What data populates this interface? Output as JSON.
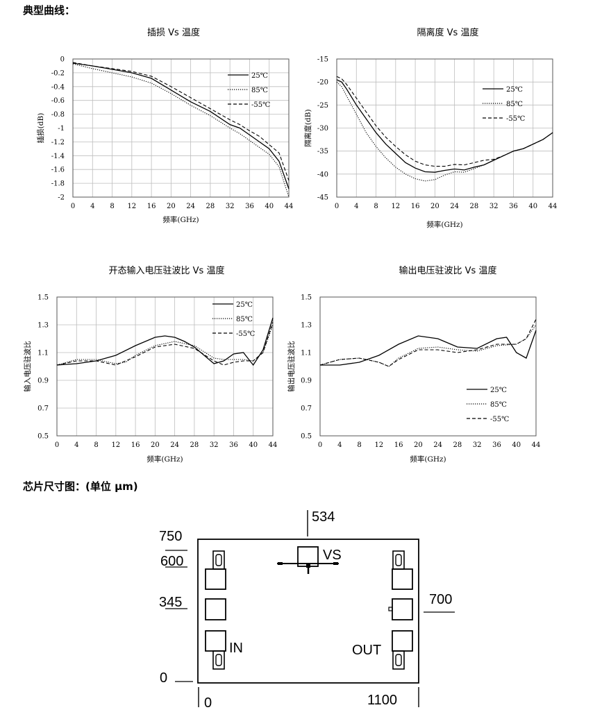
{
  "section1_title": "典型曲线：",
  "section2_title": "芯片尺寸图：(单位 μm)",
  "chart_data": [
    {
      "type": "line",
      "title": "插损 Vs 温度",
      "xlabel": "频率(GHz)",
      "ylabel": "插损(dB)",
      "xlim": [
        0,
        44
      ],
      "ylim": [
        -2,
        0
      ],
      "xticks": [
        "0",
        "4",
        "8",
        "12",
        "16",
        "20",
        "24",
        "28",
        "32",
        "36",
        "40",
        "44"
      ],
      "yticks": [
        "0",
        "-0.2",
        "-0.4",
        "-0.6",
        "-0.8",
        "-1",
        "-1.2",
        "-1.4",
        "-1.6",
        "-1.8",
        "-2"
      ],
      "grid": true,
      "legend_position": "top-right",
      "series": [
        {
          "name": "25℃",
          "style": "solid",
          "x": [
            0,
            4,
            8,
            12,
            16,
            20,
            24,
            28,
            32,
            34,
            36,
            38,
            40,
            42,
            44
          ],
          "y": [
            -0.06,
            -0.1,
            -0.15,
            -0.2,
            -0.28,
            -0.45,
            -0.62,
            -0.76,
            -0.95,
            -1.0,
            -1.1,
            -1.2,
            -1.3,
            -1.48,
            -1.88
          ]
        },
        {
          "name": "85℃",
          "style": "dotted",
          "x": [
            0,
            4,
            8,
            12,
            16,
            20,
            24,
            28,
            32,
            34,
            36,
            38,
            40,
            42,
            44
          ],
          "y": [
            -0.07,
            -0.14,
            -0.2,
            -0.26,
            -0.35,
            -0.5,
            -0.67,
            -0.82,
            -1.0,
            -1.08,
            -1.18,
            -1.28,
            -1.38,
            -1.56,
            -2.0
          ]
        },
        {
          "name": "-55℃",
          "style": "dashed",
          "x": [
            0,
            4,
            8,
            12,
            16,
            20,
            24,
            28,
            32,
            34,
            36,
            38,
            40,
            42,
            44
          ],
          "y": [
            -0.05,
            -0.1,
            -0.14,
            -0.18,
            -0.25,
            -0.4,
            -0.56,
            -0.72,
            -0.88,
            -0.95,
            -1.04,
            -1.12,
            -1.24,
            -1.36,
            -1.76
          ]
        }
      ]
    },
    {
      "type": "line",
      "title": "隔离度 Vs 温度",
      "xlabel": "频率(GHz)",
      "ylabel": "隔离度(dB)",
      "xlim": [
        0,
        44
      ],
      "ylim": [
        -45,
        -15
      ],
      "xticks": [
        "0",
        "4",
        "8",
        "12",
        "16",
        "20",
        "24",
        "28",
        "32",
        "36",
        "40",
        "44"
      ],
      "yticks": [
        "-15",
        "-20",
        "-25",
        "-30",
        "-35",
        "-40",
        "-45"
      ],
      "grid": true,
      "legend_position": "top-right",
      "series": [
        {
          "name": "25℃",
          "style": "solid",
          "x": [
            0,
            1,
            2,
            4,
            6,
            8,
            10,
            12,
            14,
            16,
            18,
            20,
            22,
            24,
            26,
            28,
            30,
            32,
            34,
            36,
            38,
            40,
            42,
            44
          ],
          "y": [
            -19.5,
            -20,
            -21.5,
            -25,
            -28,
            -31,
            -33.5,
            -35.5,
            -37.5,
            -38.7,
            -39.5,
            -39.6,
            -39.2,
            -38.9,
            -39.1,
            -38.5,
            -38,
            -37,
            -36,
            -35,
            -34.5,
            -33.5,
            -32.5,
            -31
          ]
        },
        {
          "name": "85℃",
          "style": "dotted",
          "x": [
            0,
            1,
            2,
            4,
            6,
            8,
            10,
            12,
            14,
            16,
            18,
            20,
            22,
            24,
            26,
            28,
            30,
            32,
            34,
            36,
            38,
            40,
            42,
            44
          ],
          "y": [
            -20,
            -21,
            -23,
            -27,
            -31,
            -34,
            -36.5,
            -38.5,
            -40,
            -41,
            -41.5,
            -41.2,
            -40.2,
            -39.5,
            -39.6,
            -38.8,
            -38,
            -37,
            -36,
            -35,
            -34.5,
            -33.5,
            -32.5,
            -31
          ]
        },
        {
          "name": "-55℃",
          "style": "dashed",
          "x": [
            0,
            1,
            2,
            4,
            6,
            8,
            10,
            12,
            14,
            16,
            18,
            20,
            22,
            24,
            26,
            28,
            30,
            32,
            34,
            36,
            38,
            40,
            42,
            44
          ],
          "y": [
            -18.8,
            -19.3,
            -20.5,
            -23.5,
            -26.5,
            -29.5,
            -32,
            -34,
            -35.8,
            -37.2,
            -38,
            -38.3,
            -38.3,
            -37.9,
            -38,
            -37.5,
            -37,
            -36.8,
            -36,
            -35,
            -34.5,
            -33.5,
            -32.5,
            -31
          ]
        }
      ]
    },
    {
      "type": "line",
      "title": "开态输入电压驻波比 Vs 温度",
      "xlabel": "频率(GHz)",
      "ylabel": "输入电压驻波比",
      "xlim": [
        0,
        44
      ],
      "ylim": [
        0.5,
        1.5
      ],
      "xticks": [
        "0",
        "4",
        "8",
        "12",
        "16",
        "20",
        "24",
        "28",
        "32",
        "36",
        "40",
        "44"
      ],
      "yticks": [
        "1.5",
        "1.3",
        "1.1",
        "0.9",
        "0.7",
        "0.5"
      ],
      "grid": true,
      "legend_position": "top-right",
      "series": [
        {
          "name": "25℃",
          "style": "solid",
          "x": [
            0,
            4,
            8,
            12,
            16,
            20,
            22,
            24,
            26,
            28,
            30,
            32,
            34,
            36,
            38,
            40,
            42,
            44
          ],
          "y": [
            1.01,
            1.02,
            1.04,
            1.08,
            1.15,
            1.21,
            1.22,
            1.21,
            1.18,
            1.14,
            1.08,
            1.02,
            1.04,
            1.09,
            1.1,
            1.01,
            1.12,
            1.35
          ]
        },
        {
          "name": "85℃",
          "style": "dotted",
          "x": [
            0,
            4,
            8,
            12,
            14,
            16,
            20,
            24,
            28,
            32,
            34,
            36,
            38,
            40,
            42,
            44
          ],
          "y": [
            1.01,
            1.05,
            1.05,
            1.02,
            1.03,
            1.08,
            1.15,
            1.18,
            1.15,
            1.06,
            1.05,
            1.05,
            1.05,
            1.04,
            1.1,
            1.3
          ]
        },
        {
          "name": "-55℃",
          "style": "dashed",
          "x": [
            0,
            4,
            8,
            12,
            16,
            20,
            24,
            28,
            32,
            34,
            36,
            38,
            40,
            42,
            44
          ],
          "y": [
            1.01,
            1.04,
            1.04,
            1.01,
            1.07,
            1.14,
            1.16,
            1.13,
            1.04,
            1.01,
            1.03,
            1.04,
            1.04,
            1.1,
            1.32
          ]
        }
      ]
    },
    {
      "type": "line",
      "title": "输出电压驻波比 Vs 温度",
      "xlabel": "频率(GHz)",
      "ylabel": "输出电压驻波比",
      "xlim": [
        0,
        44
      ],
      "ylim": [
        0.5,
        1.5
      ],
      "xticks": [
        "0",
        "4",
        "8",
        "12",
        "16",
        "20",
        "24",
        "28",
        "32",
        "36",
        "40",
        "44"
      ],
      "yticks": [
        "1.5",
        "1.3",
        "1.1",
        "0.9",
        "0.7",
        "0.5"
      ],
      "grid": false,
      "legend_position": "bottom-right",
      "series": [
        {
          "name": "25℃",
          "style": "solid",
          "x": [
            0,
            4,
            8,
            12,
            16,
            20,
            24,
            28,
            32,
            36,
            38,
            40,
            42,
            44
          ],
          "y": [
            1.01,
            1.01,
            1.03,
            1.08,
            1.16,
            1.22,
            1.2,
            1.14,
            1.13,
            1.2,
            1.21,
            1.1,
            1.06,
            1.26
          ]
        },
        {
          "name": "85℃",
          "style": "dotted",
          "x": [
            0,
            4,
            8,
            12,
            14,
            16,
            20,
            24,
            28,
            32,
            36,
            40,
            42,
            44
          ],
          "y": [
            1.01,
            1.05,
            1.06,
            1.03,
            1.0,
            1.06,
            1.13,
            1.14,
            1.12,
            1.11,
            1.15,
            1.16,
            1.2,
            1.3
          ]
        },
        {
          "name": "-55℃",
          "style": "dashed",
          "x": [
            0,
            4,
            8,
            12,
            14,
            16,
            20,
            24,
            28,
            32,
            36,
            40,
            42,
            44
          ],
          "y": [
            1.01,
            1.05,
            1.06,
            1.03,
            1.0,
            1.05,
            1.12,
            1.12,
            1.1,
            1.12,
            1.16,
            1.16,
            1.2,
            1.34
          ]
        }
      ]
    }
  ],
  "die_diagram": {
    "dimensions": [
      "534",
      "750",
      "600",
      "345",
      "700",
      "0",
      "0",
      "1100"
    ],
    "pad_labels": {
      "vs": "VS",
      "in": "IN",
      "out": "OUT"
    }
  }
}
